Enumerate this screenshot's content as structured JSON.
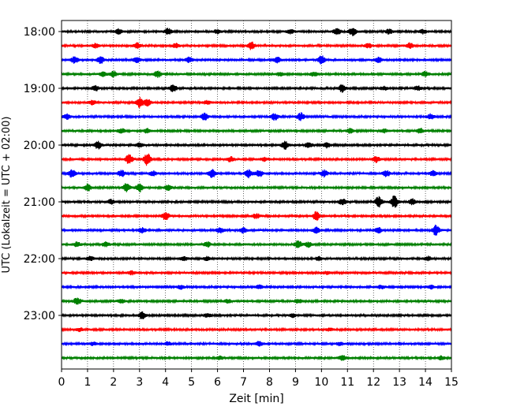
{
  "chart_data": {
    "type": "line",
    "title": "",
    "xlabel": "Zeit  [min]",
    "ylabel": "UTC (Lokalzeit = UTC + 02:00)",
    "xlim": [
      0,
      15
    ],
    "x_ticks": [
      "0",
      "1",
      "2",
      "3",
      "4",
      "5",
      "6",
      "7",
      "8",
      "9",
      "10",
      "11",
      "12",
      "13",
      "14",
      "15"
    ],
    "y_tick_labels": [
      "18:00",
      "19:00",
      "20:00",
      "21:00",
      "22:00",
      "23:00"
    ],
    "grid": "vertical dotted at each minute",
    "colors": [
      "#000000",
      "#ff0000",
      "#0000ff",
      "#008000"
    ],
    "series": [
      {
        "start": "17:45",
        "color": "#000000",
        "bursts": [
          [
            2.2,
            0.6
          ],
          [
            4.1,
            0.7
          ],
          [
            6.0,
            0.5
          ],
          [
            8.8,
            0.5
          ],
          [
            10.6,
            0.8
          ],
          [
            11.2,
            1.0
          ],
          [
            12.6,
            0.6
          ],
          [
            13.9,
            0.5
          ]
        ]
      },
      {
        "start": "18:00",
        "color": "#ff0000",
        "bursts": [
          [
            1.3,
            0.5
          ],
          [
            2.9,
            0.6
          ],
          [
            4.4,
            0.5
          ],
          [
            7.3,
            0.9
          ],
          [
            11.8,
            0.5
          ],
          [
            13.4,
            0.6
          ]
        ]
      },
      {
        "start": "18:15",
        "color": "#0000ff",
        "bursts": [
          [
            0.5,
            0.8
          ],
          [
            1.5,
            0.9
          ],
          [
            2.9,
            0.6
          ],
          [
            4.9,
            0.6
          ],
          [
            8.3,
            0.6
          ],
          [
            10.0,
            1.0
          ],
          [
            12.2,
            0.6
          ]
        ]
      },
      {
        "start": "18:30",
        "color": "#008000",
        "bursts": [
          [
            1.6,
            0.5
          ],
          [
            2.0,
            0.7
          ],
          [
            3.7,
            0.8
          ],
          [
            8.4,
            0.4
          ],
          [
            9.7,
            0.5
          ],
          [
            14.0,
            0.6
          ]
        ]
      },
      {
        "start": "18:45",
        "color": "#000000",
        "bursts": [
          [
            1.3,
            0.6
          ],
          [
            4.3,
            0.9
          ],
          [
            10.8,
            0.9
          ],
          [
            12.4,
            0.4
          ],
          [
            13.7,
            0.5
          ]
        ]
      },
      {
        "start": "19:00",
        "color": "#ff0000",
        "bursts": [
          [
            1.2,
            0.5
          ],
          [
            3.0,
            1.2
          ],
          [
            3.3,
            0.8
          ],
          [
            5.6,
            0.4
          ]
        ]
      },
      {
        "start": "19:15",
        "color": "#0000ff",
        "bursts": [
          [
            0.2,
            0.6
          ],
          [
            5.5,
            0.8
          ],
          [
            8.2,
            0.8
          ],
          [
            9.2,
            0.9
          ],
          [
            14.2,
            0.6
          ]
        ]
      },
      {
        "start": "19:30",
        "color": "#008000",
        "bursts": [
          [
            2.3,
            0.5
          ],
          [
            3.3,
            0.5
          ],
          [
            11.1,
            0.5
          ],
          [
            12.4,
            0.4
          ],
          [
            13.8,
            0.6
          ]
        ]
      },
      {
        "start": "19:45",
        "color": "#000000",
        "bursts": [
          [
            1.4,
            0.9
          ],
          [
            3.0,
            0.5
          ],
          [
            8.6,
            0.9
          ],
          [
            9.5,
            0.6
          ],
          [
            10.2,
            0.6
          ]
        ]
      },
      {
        "start": "20:00",
        "color": "#ff0000",
        "bursts": [
          [
            2.6,
            1.1
          ],
          [
            3.3,
            1.5
          ],
          [
            6.5,
            0.6
          ],
          [
            7.8,
            0.4
          ],
          [
            12.1,
            0.7
          ]
        ]
      },
      {
        "start": "20:15",
        "color": "#0000ff",
        "bursts": [
          [
            0.4,
            0.9
          ],
          [
            2.3,
            0.8
          ],
          [
            3.5,
            0.6
          ],
          [
            5.8,
            1.0
          ],
          [
            7.2,
            1.0
          ],
          [
            7.6,
            0.8
          ],
          [
            10.1,
            0.8
          ],
          [
            12.5,
            0.7
          ],
          [
            14.3,
            0.6
          ]
        ]
      },
      {
        "start": "20:30",
        "color": "#008000",
        "bursts": [
          [
            1.0,
            0.8
          ],
          [
            2.5,
            1.0
          ],
          [
            3.0,
            1.0
          ],
          [
            4.1,
            0.6
          ]
        ]
      },
      {
        "start": "20:45",
        "color": "#000000",
        "bursts": [
          [
            1.9,
            0.5
          ],
          [
            10.8,
            0.8
          ],
          [
            12.2,
            1.3
          ],
          [
            12.8,
            1.5
          ],
          [
            13.5,
            0.7
          ]
        ]
      },
      {
        "start": "21:00",
        "color": "#ff0000",
        "bursts": [
          [
            4.0,
            1.0
          ],
          [
            7.5,
            0.6
          ],
          [
            9.8,
            1.0
          ]
        ]
      },
      {
        "start": "21:15",
        "color": "#0000ff",
        "bursts": [
          [
            3.1,
            0.6
          ],
          [
            6.1,
            0.6
          ],
          [
            7.0,
            0.7
          ],
          [
            9.8,
            0.7
          ],
          [
            12.2,
            0.6
          ],
          [
            14.4,
            1.2
          ]
        ]
      },
      {
        "start": "21:30",
        "color": "#008000",
        "bursts": [
          [
            0.6,
            0.5
          ],
          [
            1.7,
            0.5
          ],
          [
            5.6,
            0.6
          ],
          [
            9.1,
            0.9
          ],
          [
            9.5,
            0.6
          ]
        ]
      },
      {
        "start": "21:45",
        "color": "#000000",
        "bursts": [
          [
            1.1,
            0.5
          ],
          [
            4.7,
            0.5
          ],
          [
            5.6,
            0.4
          ],
          [
            9.9,
            0.4
          ],
          [
            14.1,
            0.5
          ]
        ]
      },
      {
        "start": "22:00",
        "color": "#ff0000",
        "bursts": [
          [
            2.7,
            0.4
          ],
          [
            10.2,
            0.3
          ]
        ]
      },
      {
        "start": "22:15",
        "color": "#0000ff",
        "bursts": [
          [
            4.6,
            0.4
          ],
          [
            7.6,
            0.4
          ],
          [
            12.3,
            0.4
          ],
          [
            14.2,
            0.4
          ]
        ]
      },
      {
        "start": "22:30",
        "color": "#008000",
        "bursts": [
          [
            0.6,
            0.8
          ],
          [
            2.3,
            0.5
          ],
          [
            6.4,
            0.4
          ],
          [
            9.1,
            0.5
          ]
        ]
      },
      {
        "start": "22:45",
        "color": "#000000",
        "bursts": [
          [
            3.1,
            0.8
          ],
          [
            5.6,
            0.4
          ],
          [
            8.9,
            0.4
          ]
        ]
      },
      {
        "start": "23:00",
        "color": "#ff0000",
        "bursts": [
          [
            0.7,
            0.4
          ],
          [
            10.3,
            0.3
          ]
        ]
      },
      {
        "start": "23:15",
        "color": "#0000ff",
        "bursts": [
          [
            1.2,
            0.4
          ],
          [
            4.1,
            0.4
          ],
          [
            7.6,
            0.5
          ],
          [
            10.7,
            0.4
          ]
        ]
      },
      {
        "start": "23:30",
        "color": "#008000",
        "bursts": [
          [
            6.1,
            0.4
          ],
          [
            10.8,
            0.6
          ],
          [
            14.6,
            0.4
          ]
        ]
      }
    ]
  }
}
